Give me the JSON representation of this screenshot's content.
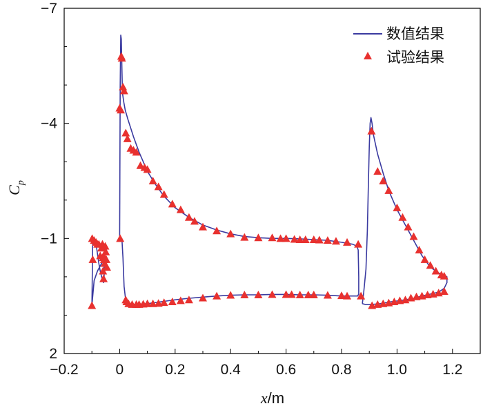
{
  "chart_data": {
    "type": "line+scatter",
    "x_axis": {
      "label_var": "x",
      "label_unit": "/m",
      "range": [
        -0.2,
        1.3
      ],
      "ticks": [
        {
          "value": -0.2,
          "label": "−0.2"
        },
        {
          "value": 0.0,
          "label": "0"
        },
        {
          "value": 0.2,
          "label": "0.2"
        },
        {
          "value": 0.4,
          "label": "0.4"
        },
        {
          "value": 0.6,
          "label": "0.6"
        },
        {
          "value": 0.8,
          "label": "0.8"
        },
        {
          "value": 1.0,
          "label": "1.0"
        },
        {
          "value": 1.2,
          "label": "1.2"
        }
      ]
    },
    "y_axis": {
      "label": "C",
      "label_subscript": "p",
      "inverted": true,
      "range": [
        -7,
        2
      ],
      "ticks": [
        {
          "value": -7,
          "label": "−7"
        },
        {
          "value": -4,
          "label": "−4"
        },
        {
          "value": -1,
          "label": "−1"
        },
        {
          "value": 2,
          "label": "2"
        }
      ]
    },
    "legend": {
      "placement": "top-right",
      "entries": [
        {
          "label": "数值结果",
          "kind": "line",
          "color": "#3a3aa0"
        },
        {
          "label": "试验结果",
          "kind": "triangle",
          "color": "#e8312f"
        }
      ]
    },
    "series": [
      {
        "name": "数值结果",
        "kind": "line",
        "color": "#3a3aa0",
        "segments": [
          [
            [
              -0.1,
              0.75
            ],
            [
              -0.099,
              0.2
            ],
            [
              -0.098,
              -0.45
            ],
            [
              -0.097,
              -1.0
            ],
            [
              -0.094,
              -1.0
            ],
            [
              -0.09,
              -0.95
            ],
            [
              -0.085,
              -0.85
            ],
            [
              -0.08,
              -0.6
            ],
            [
              -0.075,
              -0.35
            ],
            [
              -0.07,
              -0.15
            ],
            [
              -0.065,
              0.0
            ],
            [
              -0.06,
              0.1
            ],
            [
              -0.058,
              0.15
            ],
            [
              -0.056,
              0.1
            ],
            [
              -0.056,
              -0.15
            ],
            [
              -0.055,
              -0.55
            ],
            [
              -0.053,
              -0.8
            ],
            [
              -0.052,
              -0.75
            ],
            [
              -0.053,
              -0.55
            ],
            [
              -0.065,
              -0.35
            ],
            [
              -0.08,
              -0.15
            ],
            [
              -0.092,
              0.1
            ],
            [
              -0.1,
              0.75
            ]
          ],
          [
            [
              0.0,
              -1.0
            ],
            [
              0.001,
              -3.0
            ],
            [
              0.002,
              -5.0
            ],
            [
              0.004,
              -6.3
            ],
            [
              0.006,
              -6.2
            ],
            [
              0.008,
              -5.5
            ],
            [
              0.01,
              -4.8
            ],
            [
              0.015,
              -4.55
            ],
            [
              0.02,
              -4.35
            ],
            [
              0.03,
              -4.1
            ],
            [
              0.05,
              -3.65
            ],
            [
              0.07,
              -3.25
            ],
            [
              0.1,
              -2.75
            ],
            [
              0.13,
              -2.4
            ],
            [
              0.16,
              -2.1
            ],
            [
              0.2,
              -1.8
            ],
            [
              0.25,
              -1.55
            ],
            [
              0.3,
              -1.35
            ],
            [
              0.35,
              -1.22
            ],
            [
              0.4,
              -1.12
            ],
            [
              0.45,
              -1.05
            ],
            [
              0.5,
              -1.02
            ],
            [
              0.55,
              -1.0
            ],
            [
              0.6,
              -1.0
            ],
            [
              0.65,
              -0.99
            ],
            [
              0.7,
              -0.97
            ],
            [
              0.75,
              -0.95
            ],
            [
              0.8,
              -0.9
            ],
            [
              0.84,
              -0.85
            ],
            [
              0.855,
              -0.8
            ],
            [
              0.86,
              -0.7
            ],
            [
              0.862,
              0.0
            ],
            [
              0.862,
              0.45
            ],
            [
              0.858,
              0.5
            ],
            [
              0.85,
              0.5
            ],
            [
              0.8,
              0.5
            ],
            [
              0.75,
              0.48
            ],
            [
              0.7,
              0.47
            ],
            [
              0.65,
              0.47
            ],
            [
              0.6,
              0.46
            ],
            [
              0.55,
              0.46
            ],
            [
              0.5,
              0.47
            ],
            [
              0.45,
              0.47
            ],
            [
              0.4,
              0.48
            ],
            [
              0.35,
              0.5
            ],
            [
              0.3,
              0.53
            ],
            [
              0.25,
              0.56
            ],
            [
              0.2,
              0.6
            ],
            [
              0.15,
              0.65
            ],
            [
              0.1,
              0.7
            ],
            [
              0.06,
              0.72
            ],
            [
              0.035,
              0.72
            ],
            [
              0.025,
              0.68
            ],
            [
              0.02,
              0.5
            ],
            [
              0.016,
              0.25
            ],
            [
              0.012,
              -0.5
            ],
            [
              0.008,
              -1.0
            ],
            [
              0.0,
              -1.0
            ]
          ],
          [
            [
              0.875,
              0.7
            ],
            [
              0.88,
              0.4
            ],
            [
              0.888,
              -0.2
            ],
            [
              0.893,
              -1.2
            ],
            [
              0.897,
              -2.5
            ],
            [
              0.9,
              -3.4
            ],
            [
              0.903,
              -4.0
            ],
            [
              0.906,
              -4.15
            ],
            [
              0.91,
              -4.0
            ],
            [
              0.915,
              -3.7
            ],
            [
              0.93,
              -3.2
            ],
            [
              0.95,
              -2.7
            ],
            [
              0.97,
              -2.25
            ],
            [
              1.0,
              -1.75
            ],
            [
              1.03,
              -1.35
            ],
            [
              1.06,
              -0.95
            ],
            [
              1.09,
              -0.55
            ],
            [
              1.12,
              -0.25
            ],
            [
              1.15,
              -0.1
            ],
            [
              1.17,
              -0.05
            ],
            [
              1.18,
              0.0
            ],
            [
              1.18,
              0.15
            ],
            [
              1.17,
              0.3
            ],
            [
              1.15,
              0.4
            ],
            [
              1.12,
              0.45
            ],
            [
              1.09,
              0.5
            ],
            [
              1.06,
              0.56
            ],
            [
              1.03,
              0.6
            ],
            [
              1.0,
              0.63
            ],
            [
              0.97,
              0.66
            ],
            [
              0.94,
              0.7
            ],
            [
              0.91,
              0.72
            ],
            [
              0.895,
              0.72
            ],
            [
              0.885,
              0.72
            ],
            [
              0.875,
              0.7
            ]
          ]
        ]
      },
      {
        "name": "试验结果",
        "kind": "scatter",
        "marker": "triangle",
        "color": "#e8312f",
        "points": [
          [
            -0.1,
            0.75
          ],
          [
            -0.099,
            -1.0
          ],
          [
            -0.097,
            -0.45
          ],
          [
            -0.092,
            -0.95
          ],
          [
            -0.085,
            -0.9
          ],
          [
            -0.08,
            -0.85
          ],
          [
            -0.075,
            -0.85
          ],
          [
            -0.07,
            -0.55
          ],
          [
            -0.066,
            -0.75
          ],
          [
            -0.062,
            -0.85
          ],
          [
            -0.06,
            -0.5
          ],
          [
            -0.058,
            -0.55
          ],
          [
            -0.056,
            -0.45
          ],
          [
            -0.054,
            -0.35
          ],
          [
            -0.052,
            -0.8
          ],
          [
            -0.05,
            -0.65
          ],
          [
            -0.048,
            -0.45
          ],
          [
            -0.046,
            -0.25
          ],
          [
            -0.06,
            -0.15
          ],
          [
            -0.058,
            0.05
          ],
          [
            0.002,
            -1.0
          ],
          [
            0.0,
            -4.4
          ],
          [
            0.004,
            -4.35
          ],
          [
            0.006,
            -5.75
          ],
          [
            0.008,
            -5.7
          ],
          [
            0.012,
            -4.95
          ],
          [
            0.016,
            -4.85
          ],
          [
            0.022,
            -3.75
          ],
          [
            0.028,
            -3.6
          ],
          [
            0.04,
            -3.35
          ],
          [
            0.05,
            -3.3
          ],
          [
            0.06,
            -3.25
          ],
          [
            0.075,
            -2.9
          ],
          [
            0.09,
            -2.85
          ],
          [
            0.1,
            -2.8
          ],
          [
            0.12,
            -2.5
          ],
          [
            0.14,
            -2.35
          ],
          [
            0.16,
            -2.15
          ],
          [
            0.19,
            -1.9
          ],
          [
            0.22,
            -1.75
          ],
          [
            0.25,
            -1.55
          ],
          [
            0.27,
            -1.45
          ],
          [
            0.3,
            -1.3
          ],
          [
            0.35,
            -1.2
          ],
          [
            0.4,
            -1.12
          ],
          [
            0.45,
            -1.03
          ],
          [
            0.5,
            -1.02
          ],
          [
            0.55,
            -1.02
          ],
          [
            0.58,
            -1.0
          ],
          [
            0.6,
            -1.0
          ],
          [
            0.63,
            -0.98
          ],
          [
            0.65,
            -0.97
          ],
          [
            0.67,
            -0.97
          ],
          [
            0.7,
            -0.97
          ],
          [
            0.72,
            -0.96
          ],
          [
            0.75,
            -0.95
          ],
          [
            0.78,
            -0.93
          ],
          [
            0.82,
            -0.9
          ],
          [
            0.86,
            -0.85
          ],
          [
            0.87,
            0.5
          ],
          [
            0.82,
            0.5
          ],
          [
            0.8,
            0.49
          ],
          [
            0.75,
            0.48
          ],
          [
            0.7,
            0.47
          ],
          [
            0.68,
            0.47
          ],
          [
            0.65,
            0.47
          ],
          [
            0.62,
            0.46
          ],
          [
            0.6,
            0.46
          ],
          [
            0.55,
            0.46
          ],
          [
            0.5,
            0.47
          ],
          [
            0.45,
            0.47
          ],
          [
            0.4,
            0.48
          ],
          [
            0.35,
            0.5
          ],
          [
            0.3,
            0.55
          ],
          [
            0.25,
            0.6
          ],
          [
            0.22,
            0.62
          ],
          [
            0.19,
            0.65
          ],
          [
            0.16,
            0.67
          ],
          [
            0.14,
            0.69
          ],
          [
            0.12,
            0.7
          ],
          [
            0.1,
            0.7
          ],
          [
            0.085,
            0.71
          ],
          [
            0.07,
            0.72
          ],
          [
            0.06,
            0.72
          ],
          [
            0.045,
            0.72
          ],
          [
            0.032,
            0.7
          ],
          [
            0.025,
            0.65
          ],
          [
            0.022,
            0.6
          ],
          [
            0.908,
            -3.8
          ],
          [
            0.91,
            0.75
          ],
          [
            0.93,
            0.72
          ],
          [
            0.95,
            0.7
          ],
          [
            0.97,
            0.68
          ],
          [
            0.99,
            0.65
          ],
          [
            1.01,
            0.62
          ],
          [
            1.03,
            0.6
          ],
          [
            1.05,
            0.55
          ],
          [
            1.07,
            0.52
          ],
          [
            1.09,
            0.5
          ],
          [
            1.11,
            0.47
          ],
          [
            1.13,
            0.45
          ],
          [
            1.15,
            0.42
          ],
          [
            1.17,
            0.38
          ],
          [
            0.93,
            -2.75
          ],
          [
            0.95,
            -2.5
          ],
          [
            0.97,
            -2.25
          ],
          [
            1.0,
            -1.8
          ],
          [
            1.02,
            -1.55
          ],
          [
            1.04,
            -1.3
          ],
          [
            1.06,
            -1.05
          ],
          [
            1.08,
            -0.7
          ],
          [
            1.1,
            -0.45
          ],
          [
            1.12,
            -0.3
          ],
          [
            1.14,
            -0.15
          ],
          [
            1.16,
            -0.05
          ],
          [
            1.17,
            -0.02
          ]
        ]
      }
    ]
  }
}
